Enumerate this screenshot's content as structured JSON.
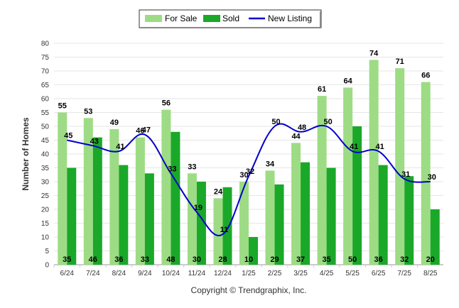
{
  "chart_data": {
    "type": "bar",
    "title": "",
    "xlabel": "",
    "ylabel": "Number of Homes",
    "ylim": [
      0,
      80
    ],
    "yticks": [
      0,
      5,
      10,
      15,
      20,
      25,
      30,
      35,
      40,
      45,
      50,
      55,
      60,
      65,
      70,
      75,
      80
    ],
    "categories": [
      "6/24",
      "7/24",
      "8/24",
      "9/24",
      "10/24",
      "11/24",
      "12/24",
      "1/25",
      "2/25",
      "3/25",
      "4/25",
      "5/25",
      "6/25",
      "7/25",
      "8/25"
    ],
    "series": [
      {
        "name": "For Sale",
        "type": "bar",
        "color": "#9ddc84",
        "values": [
          55,
          53,
          49,
          46,
          56,
          33,
          24,
          30,
          34,
          44,
          61,
          64,
          74,
          71,
          66
        ]
      },
      {
        "name": "Sold",
        "type": "bar",
        "color": "#1aa829",
        "values": [
          35,
          46,
          36,
          33,
          48,
          30,
          28,
          10,
          29,
          37,
          35,
          50,
          36,
          32,
          20
        ]
      },
      {
        "name": "New Listing",
        "type": "line",
        "color": "#0000cc",
        "values": [
          45,
          43,
          41,
          47,
          33,
          19,
          11,
          32,
          50,
          48,
          50,
          41,
          41,
          31,
          30
        ]
      }
    ],
    "grid": true,
    "legend_position": "top-center",
    "footer": "Copyright © Trendgraphix, Inc."
  }
}
